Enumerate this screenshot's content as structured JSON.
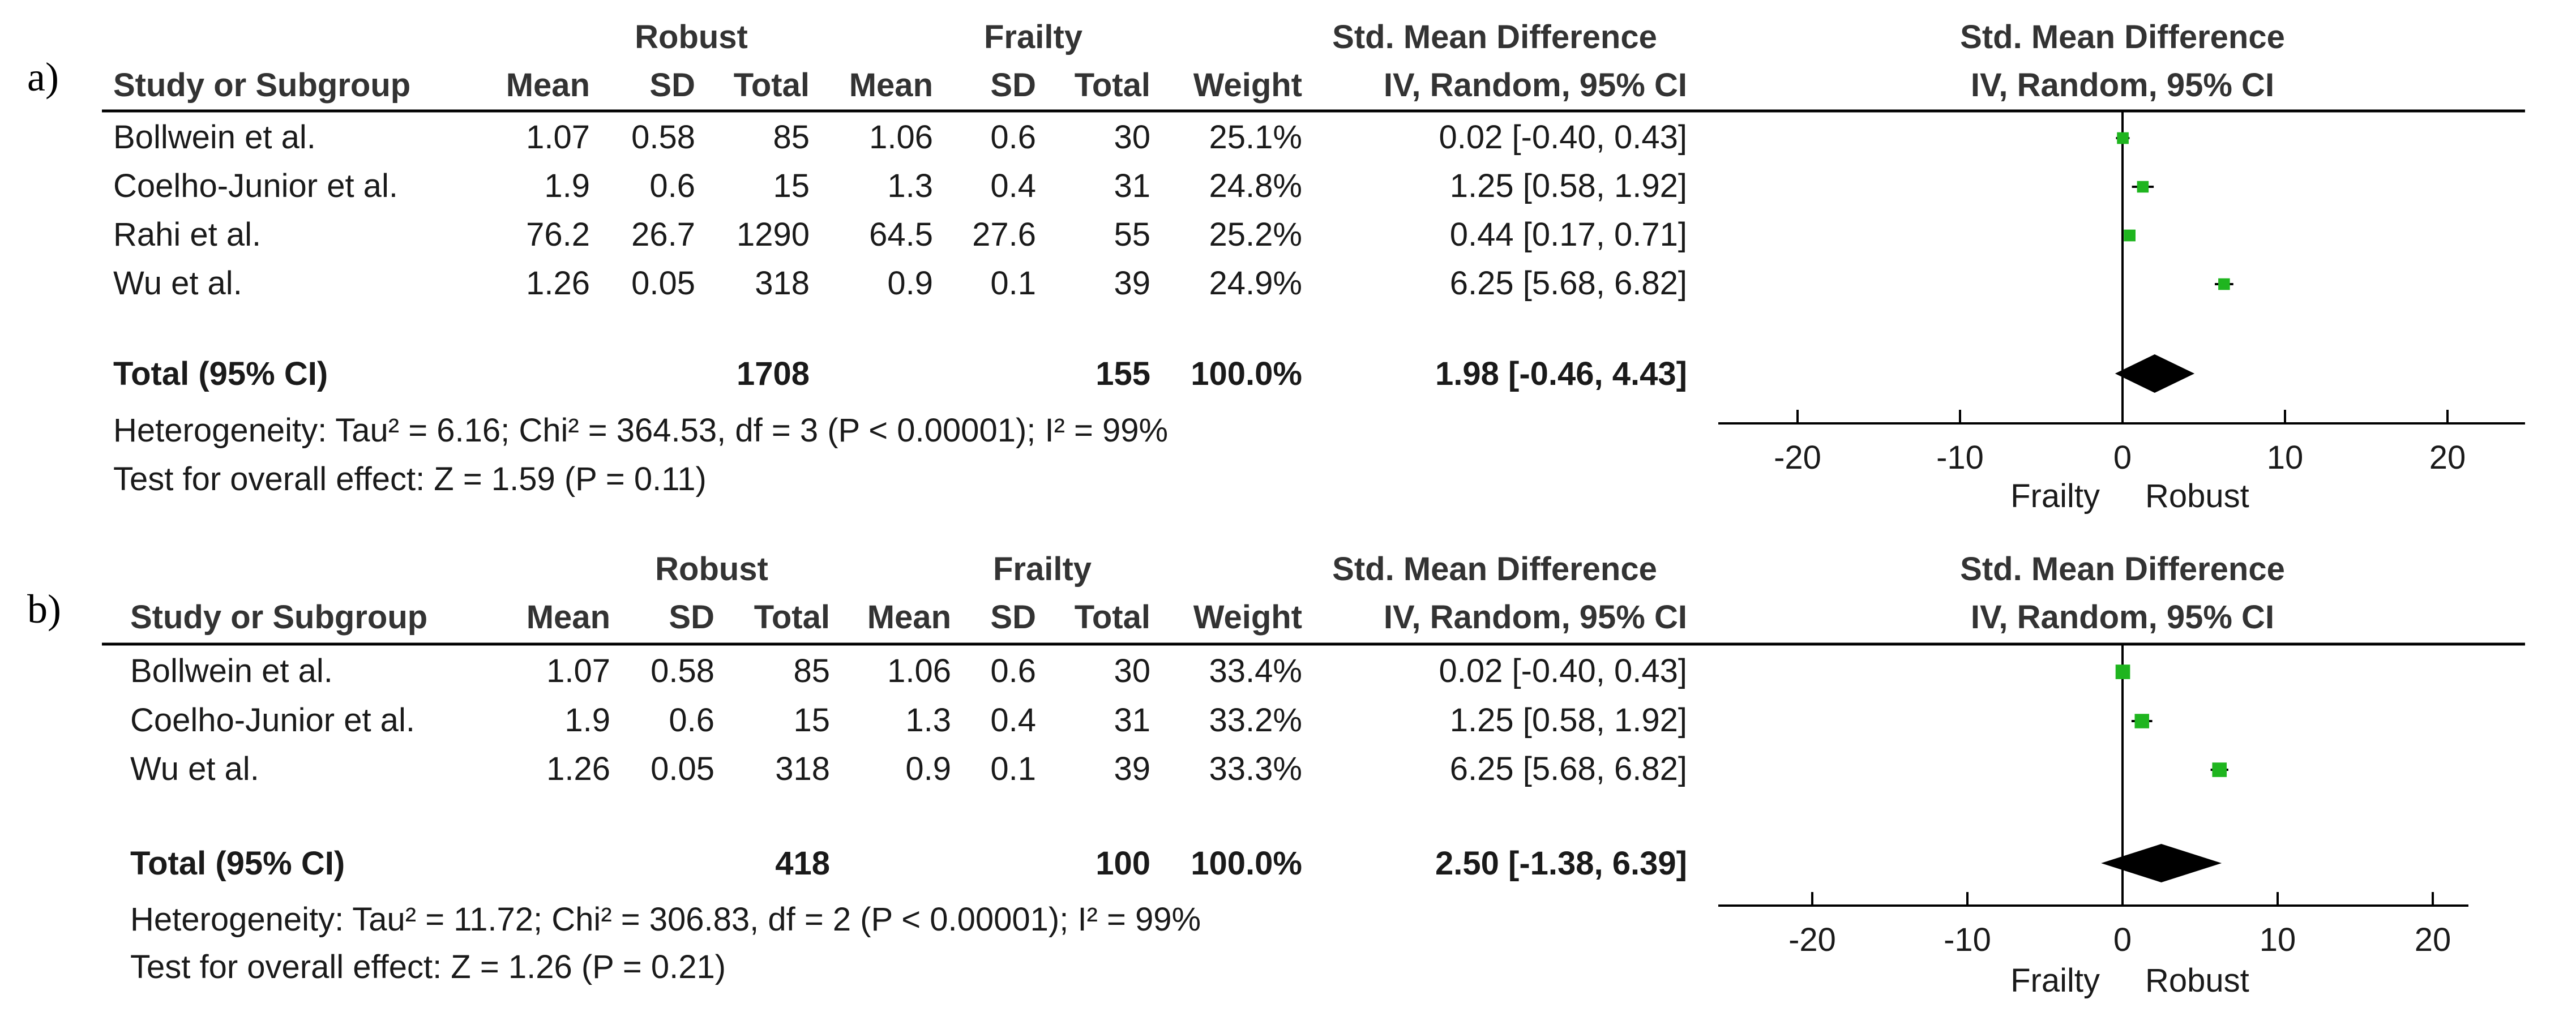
{
  "chart_data": [
    {
      "type": "forest",
      "panel_label": "a)",
      "group_headers": {
        "robust": "Robust",
        "frailty": "Frailty",
        "smd": "Std. Mean Difference",
        "plot_title": "Std. Mean Difference"
      },
      "columns": [
        "Study or Subgroup",
        "Mean",
        "SD",
        "Total",
        "Mean",
        "SD",
        "Total",
        "Weight",
        "IV, Random, 95% CI"
      ],
      "plot_subtitle": "IV, Random, 95% CI",
      "studies": [
        {
          "name": "Bollwein et al.",
          "robust_mean": "1.07",
          "robust_sd": "0.58",
          "robust_total": "85",
          "frailty_mean": "1.06",
          "frailty_sd": "0.6",
          "frailty_total": "30",
          "weight": "25.1%",
          "ci_text": "0.02 [-0.40, 0.43]",
          "smd": 0.02,
          "lo": -0.4,
          "hi": 0.43,
          "w": 25.1
        },
        {
          "name": "Coelho-Junior et al.",
          "robust_mean": "1.9",
          "robust_sd": "0.6",
          "robust_total": "15",
          "frailty_mean": "1.3",
          "frailty_sd": "0.4",
          "frailty_total": "31",
          "weight": "24.8%",
          "ci_text": "1.25 [0.58, 1.92]",
          "smd": 1.25,
          "lo": 0.58,
          "hi": 1.92,
          "w": 24.8
        },
        {
          "name": "Rahi et al.",
          "robust_mean": "76.2",
          "robust_sd": "26.7",
          "robust_total": "1290",
          "frailty_mean": "64.5",
          "frailty_sd": "27.6",
          "frailty_total": "55",
          "weight": "25.2%",
          "ci_text": "0.44 [0.17, 0.71]",
          "smd": 0.44,
          "lo": 0.17,
          "hi": 0.71,
          "w": 25.2
        },
        {
          "name": "Wu et al.",
          "robust_mean": "1.26",
          "robust_sd": "0.05",
          "robust_total": "318",
          "frailty_mean": "0.9",
          "frailty_sd": "0.1",
          "frailty_total": "39",
          "weight": "24.9%",
          "ci_text": "6.25 [5.68, 6.82]",
          "smd": 6.25,
          "lo": 5.68,
          "hi": 6.82,
          "w": 24.9
        }
      ],
      "total": {
        "label": "Total (95% CI)",
        "robust_total": "1708",
        "frailty_total": "155",
        "weight": "100.0%",
        "ci_text": "1.98 [-0.46, 4.43]",
        "smd": 1.98,
        "lo": -0.46,
        "hi": 4.43
      },
      "heterogeneity": "Heterogeneity: Tau² = 6.16; Chi² = 364.53, df = 3 (P < 0.00001); I² = 99%",
      "overall_effect": "Test for overall effect: Z = 1.59 (P = 0.11)",
      "xlim": [
        -25,
        25
      ],
      "x_ticks": [
        -20,
        -10,
        0,
        10,
        20
      ],
      "x_tick_labels": [
        "-20",
        "-10",
        "0",
        "10",
        "20"
      ],
      "favours": {
        "left": "Frailty",
        "right": "Robust"
      },
      "colors": {
        "marker": "#1fb51f",
        "diamond": "#000000"
      }
    },
    {
      "type": "forest",
      "panel_label": "b)",
      "group_headers": {
        "robust": "Robust",
        "frailty": "Frailty",
        "smd": "Std. Mean Difference",
        "plot_title": "Std. Mean Difference"
      },
      "columns": [
        "Study or Subgroup",
        "Mean",
        "SD",
        "Total",
        "Mean",
        "SD",
        "Total",
        "Weight",
        "IV, Random, 95% CI"
      ],
      "plot_subtitle": "IV, Random, 95% CI",
      "studies": [
        {
          "name": "Bollwein et al.",
          "robust_mean": "1.07",
          "robust_sd": "0.58",
          "robust_total": "85",
          "frailty_mean": "1.06",
          "frailty_sd": "0.6",
          "frailty_total": "30",
          "weight": "33.4%",
          "ci_text": "0.02 [-0.40, 0.43]",
          "smd": 0.02,
          "lo": -0.4,
          "hi": 0.43,
          "w": 33.4
        },
        {
          "name": "Coelho-Junior et al.",
          "robust_mean": "1.9",
          "robust_sd": "0.6",
          "robust_total": "15",
          "frailty_mean": "1.3",
          "frailty_sd": "0.4",
          "frailty_total": "31",
          "weight": "33.2%",
          "ci_text": "1.25 [0.58, 1.92]",
          "smd": 1.25,
          "lo": 0.58,
          "hi": 1.92,
          "w": 33.2
        },
        {
          "name": "Wu et al.",
          "robust_mean": "1.26",
          "robust_sd": "0.05",
          "robust_total": "318",
          "frailty_mean": "0.9",
          "frailty_sd": "0.1",
          "frailty_total": "39",
          "weight": "33.3%",
          "ci_text": "6.25 [5.68, 6.82]",
          "smd": 6.25,
          "lo": 5.68,
          "hi": 6.82,
          "w": 33.3
        }
      ],
      "total": {
        "label": "Total (95% CI)",
        "robust_total": "418",
        "frailty_total": "100",
        "weight": "100.0%",
        "ci_text": "2.50 [-1.38, 6.39]",
        "smd": 2.5,
        "lo": -1.38,
        "hi": 6.39
      },
      "heterogeneity": "Heterogeneity: Tau² = 11.72; Chi² = 306.83, df = 2 (P < 0.00001); I² = 99%",
      "overall_effect": "Test for overall effect: Z = 1.26 (P = 0.21)",
      "xlim": [
        -30,
        30
      ],
      "x_ticks": [
        -20,
        -10,
        0,
        10,
        20
      ],
      "x_tick_labels": [
        "-20",
        "-10",
        "0",
        "10",
        "20"
      ],
      "favours": {
        "left": "Frailty",
        "right": "Robust"
      },
      "colors": {
        "marker": "#1fb51f",
        "diamond": "#000000"
      }
    }
  ]
}
